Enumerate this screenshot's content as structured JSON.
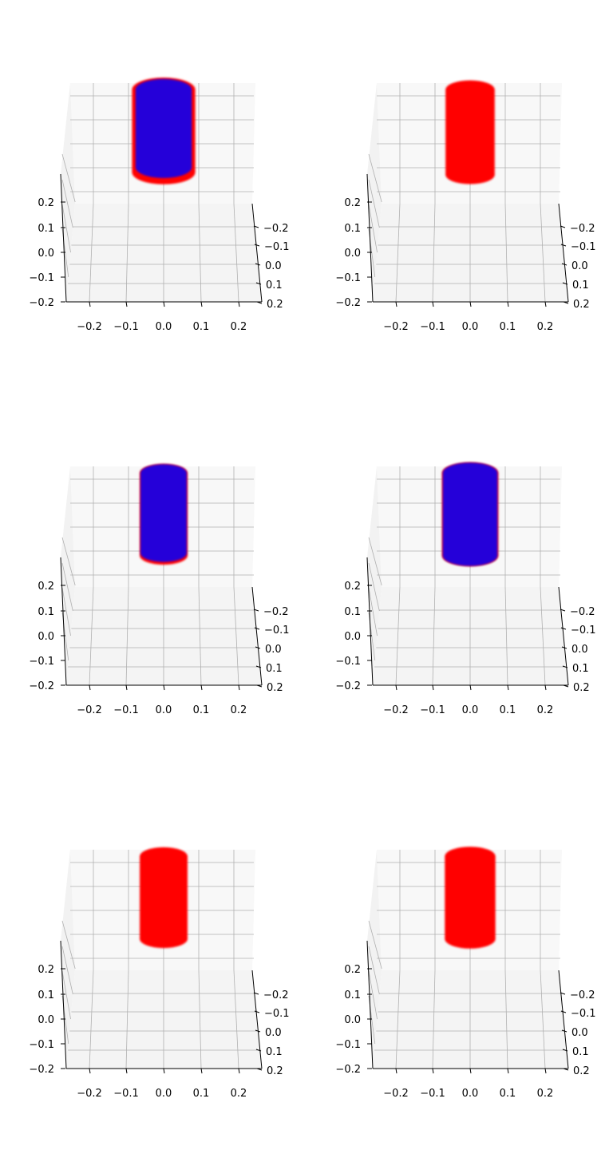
{
  "figure": {
    "background": "#ffffff",
    "pane_color": "#f2f2f2",
    "grid_color": "#b0b0b0"
  },
  "chart_data": [
    {
      "type": "scatter3d",
      "title": "",
      "x_ticks": [
        "−0.2",
        "−0.1",
        "0.0",
        "0.1",
        "0.2"
      ],
      "y_ticks": [
        "−0.2",
        "−0.1",
        "0.0",
        "0.1",
        "0.2"
      ],
      "z_ticks": [
        "−0.2",
        "−0.1",
        "0.0",
        "0.1",
        "0.2"
      ],
      "xlim": [
        -0.25,
        0.25
      ],
      "ylim": [
        -0.25,
        0.25
      ],
      "zlim": [
        -0.2,
        0.25
      ],
      "series": [
        {
          "color": "#ff0000",
          "shape": "cylinder",
          "center": [
            0.0,
            0.0
          ],
          "radius": 0.09,
          "z_range": [
            0.13,
            0.27
          ]
        },
        {
          "color": "#0000ff",
          "shape": "cylinder",
          "center": [
            0.0,
            0.0
          ],
          "radius": 0.08,
          "z_range": [
            0.15,
            0.27
          ]
        }
      ]
    },
    {
      "type": "scatter3d",
      "title": "",
      "x_ticks": [
        "−0.2",
        "−0.1",
        "0.0",
        "0.1",
        "0.2"
      ],
      "y_ticks": [
        "−0.2",
        "−0.1",
        "0.0",
        "0.1",
        "0.2"
      ],
      "z_ticks": [
        "−0.2",
        "−0.1",
        "0.0",
        "0.1",
        "0.2"
      ],
      "xlim": [
        -0.25,
        0.25
      ],
      "ylim": [
        -0.25,
        0.25
      ],
      "zlim": [
        -0.2,
        0.25
      ],
      "series": [
        {
          "color": "#ff0000",
          "shape": "cylinder",
          "center": [
            0.0,
            0.0
          ],
          "radius": 0.07,
          "z_range": [
            0.12,
            0.27
          ]
        }
      ]
    },
    {
      "type": "scatter3d",
      "title": "",
      "x_ticks": [
        "−0.2",
        "−0.1",
        "0.0",
        "0.1",
        "0.2"
      ],
      "y_ticks": [
        "−0.2",
        "−0.1",
        "0.0",
        "0.1",
        "0.2"
      ],
      "z_ticks": [
        "−0.2",
        "−0.1",
        "0.0",
        "0.1",
        "0.2"
      ],
      "xlim": [
        -0.25,
        0.25
      ],
      "ylim": [
        -0.25,
        0.25
      ],
      "zlim": [
        -0.2,
        0.25
      ],
      "series": [
        {
          "color": "#ff0000",
          "shape": "cylinder",
          "center": [
            0.0,
            0.0
          ],
          "radius": 0.068,
          "z_range": [
            0.13,
            0.27
          ]
        },
        {
          "color": "#0000ff",
          "shape": "cylinder",
          "center": [
            0.0,
            0.0
          ],
          "radius": 0.066,
          "z_range": [
            0.14,
            0.27
          ]
        }
      ]
    },
    {
      "type": "scatter3d",
      "title": "",
      "x_ticks": [
        "−0.2",
        "−0.1",
        "0.0",
        "0.1",
        "0.2"
      ],
      "y_ticks": [
        "−0.2",
        "−0.1",
        "0.0",
        "0.1",
        "0.2"
      ],
      "z_ticks": [
        "−0.2",
        "−0.1",
        "0.0",
        "0.1",
        "0.2"
      ],
      "xlim": [
        -0.25,
        0.25
      ],
      "ylim": [
        -0.25,
        0.25
      ],
      "zlim": [
        -0.2,
        0.25
      ],
      "series": [
        {
          "color": "#ff0000",
          "shape": "cylinder",
          "center": [
            0.0,
            0.0
          ],
          "radius": 0.08,
          "z_range": [
            0.13,
            0.27
          ]
        },
        {
          "color": "#0000ff",
          "shape": "cylinder",
          "center": [
            0.0,
            0.0
          ],
          "radius": 0.078,
          "z_range": [
            0.13,
            0.27
          ]
        }
      ]
    },
    {
      "type": "scatter3d",
      "title": "",
      "x_ticks": [
        "−0.2",
        "−0.1",
        "0.0",
        "0.1",
        "0.2"
      ],
      "y_ticks": [
        "−0.2",
        "−0.1",
        "0.0",
        "0.1",
        "0.2"
      ],
      "z_ticks": [
        "−0.2",
        "−0.1",
        "0.0",
        "0.1",
        "0.2"
      ],
      "xlim": [
        -0.25,
        0.25
      ],
      "ylim": [
        -0.25,
        0.25
      ],
      "zlim": [
        -0.2,
        0.25
      ],
      "series": [
        {
          "color": "#ff0000",
          "shape": "cylinder",
          "center": [
            0.0,
            0.0
          ],
          "radius": 0.068,
          "z_range": [
            0.13,
            0.27
          ]
        }
      ]
    },
    {
      "type": "scatter3d",
      "title": "",
      "x_ticks": [
        "−0.2",
        "−0.1",
        "0.0",
        "0.1",
        "0.2"
      ],
      "y_ticks": [
        "−0.2",
        "−0.1",
        "0.0",
        "0.1",
        "0.2"
      ],
      "z_ticks": [
        "−0.2",
        "−0.1",
        "0.0",
        "0.1",
        "0.2"
      ],
      "xlim": [
        -0.25,
        0.25
      ],
      "ylim": [
        -0.25,
        0.25
      ],
      "zlim": [
        -0.2,
        0.25
      ],
      "series": [
        {
          "color": "#ff0000",
          "shape": "cylinder",
          "center": [
            0.0,
            0.0
          ],
          "radius": 0.072,
          "z_range": [
            0.13,
            0.27
          ]
        }
      ]
    }
  ]
}
